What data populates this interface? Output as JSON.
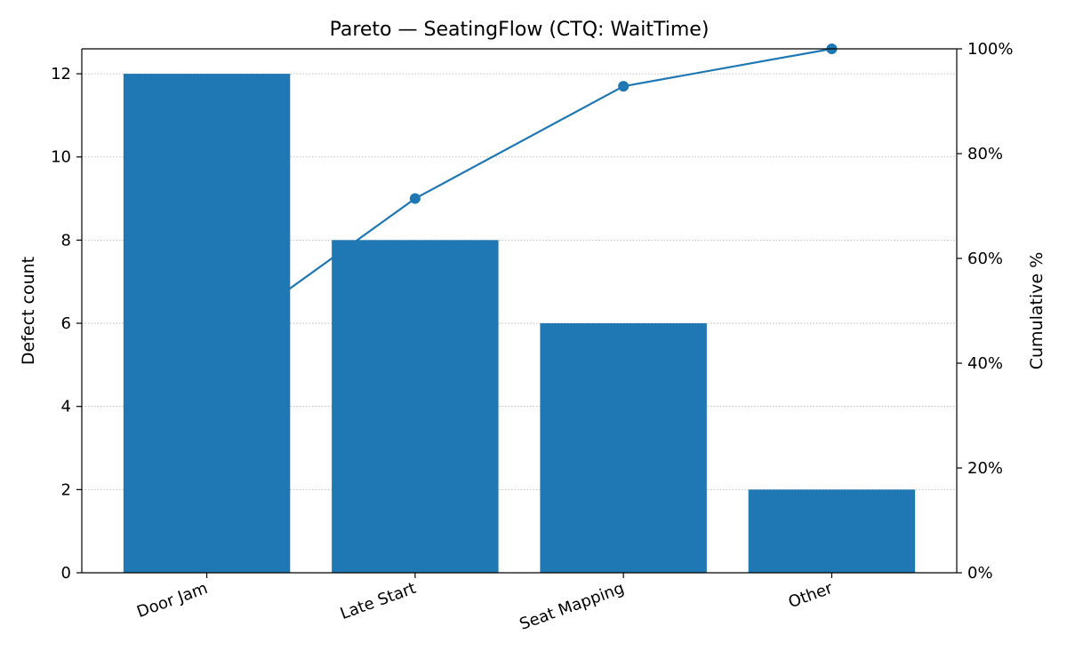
{
  "chart_data": {
    "type": "bar",
    "title": "Pareto — SeatingFlow (CTQ: WaitTime)",
    "categories": [
      "Door Jam",
      "Late Start",
      "Seat Mapping",
      "Other"
    ],
    "series": [
      {
        "type": "bar",
        "axis": "left",
        "values": [
          12,
          8,
          6,
          2
        ]
      },
      {
        "type": "line",
        "axis": "right",
        "values": [
          42.86,
          71.43,
          92.86,
          100.0
        ]
      }
    ],
    "xlabel": "",
    "ylabel": "Defect count",
    "y2label": "Cumulative %",
    "ylim": [
      0,
      12.6
    ],
    "y2lim": [
      0,
      100
    ],
    "yticks": [
      0,
      2,
      4,
      6,
      8,
      10,
      12
    ],
    "y2ticks": [
      "0%",
      "20%",
      "40%",
      "60%",
      "80%",
      "100%"
    ],
    "y2tick_values": [
      0,
      20,
      40,
      60,
      80,
      100
    ],
    "grid": "horizontal dotted",
    "colors": {
      "bar": "#1f77b4",
      "line": "#1f77b4",
      "grid": "#b0b0b0",
      "axis": "#000000"
    }
  }
}
